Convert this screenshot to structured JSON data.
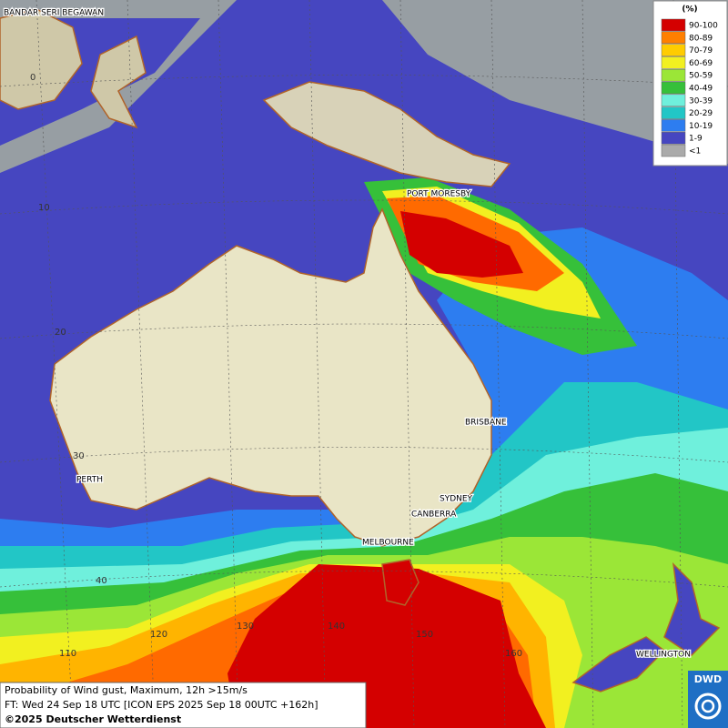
{
  "map": {
    "cities": [
      "BANDAR SERI BEGAWAN",
      "PORT MORESBY",
      "BRISBANE",
      "SYDNEY",
      "CANBERRA",
      "MELBOURNE",
      "PERTH",
      "WELLINGTON"
    ],
    "lat_labels": [
      "0",
      "10",
      "20",
      "30",
      "40"
    ],
    "lon_labels": [
      "110",
      "120",
      "130",
      "140",
      "150",
      "160"
    ]
  },
  "legend": {
    "title": "(%)",
    "items": [
      {
        "label": "90-100",
        "color": "#d40000"
      },
      {
        "label": "80-89",
        "color": "#ff7f00"
      },
      {
        "label": "70-79",
        "color": "#ffcc00"
      },
      {
        "label": "60-69",
        "color": "#f2f020"
      },
      {
        "label": "50-59",
        "color": "#9be637"
      },
      {
        "label": "40-49",
        "color": "#36c03a"
      },
      {
        "label": "30-39",
        "color": "#6ff0dc"
      },
      {
        "label": "20-29",
        "color": "#22c6c6"
      },
      {
        "label": "10-19",
        "color": "#2d7df0"
      },
      {
        "label": "1-9",
        "color": "#4646c0"
      },
      {
        "label": "<1",
        "color": "#aaaaaa"
      }
    ]
  },
  "footer": {
    "lines": [
      "Probability of Wind gust, Maximum, 12h >15m/s",
      "FT: Wed 24 Sep 18 UTC [ICON EPS 2025 Sep 18 00UTC +162h]",
      "©2025 Deutscher Wetterdienst"
    ]
  },
  "logo": "DWD"
}
